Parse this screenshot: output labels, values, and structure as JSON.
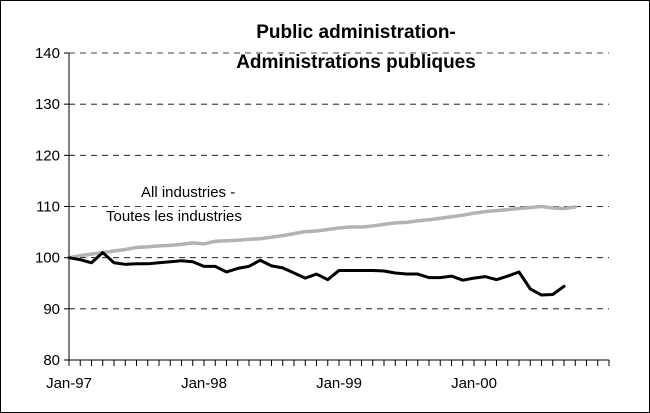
{
  "chart_data": {
    "type": "line",
    "title_lines": [
      "Public administration-",
      "Administrations publiques"
    ],
    "xlabel": "",
    "ylabel": "",
    "ylim": [
      80,
      140
    ],
    "yticks": [
      80,
      90,
      100,
      110,
      120,
      130,
      140
    ],
    "x_tick_labels": [
      "Jan-97",
      "Jan-98",
      "Jan-99",
      "Jan-00"
    ],
    "x_tick_label_months": [
      0,
      12,
      24,
      36
    ],
    "months_total": 48,
    "grid": "horizontal-dashed",
    "annotation_lines": [
      "All industries -",
      "Toutes les industries"
    ],
    "colors": {
      "all_industries": "#b3b3b3",
      "public_admin": "#000000"
    },
    "series": [
      {
        "values": [
          100.0,
          100.4,
          100.7,
          101.0,
          101.3,
          101.6,
          102.0,
          102.1,
          102.3,
          102.4,
          102.6,
          102.9,
          102.7,
          103.2,
          103.3,
          103.4,
          103.6,
          103.7,
          104.0,
          104.3,
          104.7,
          105.1,
          105.2,
          105.5,
          105.8,
          106.0,
          106.0,
          106.2,
          106.5,
          106.8,
          106.9,
          107.2,
          107.4,
          107.7,
          108.0,
          108.3,
          108.7,
          109.0,
          109.2,
          109.4,
          109.6,
          109.8,
          110.0,
          109.7,
          109.6,
          109.9
        ]
      },
      {
        "values": [
          100.0,
          99.6,
          99.0,
          101.0,
          99.0,
          98.7,
          98.8,
          98.8,
          99.0,
          99.2,
          99.4,
          99.2,
          98.3,
          98.3,
          97.2,
          97.9,
          98.3,
          99.5,
          98.4,
          98.0,
          97.0,
          96.0,
          96.8,
          95.7,
          97.5,
          97.5,
          97.5,
          97.5,
          97.4,
          97.0,
          96.8,
          96.8,
          96.1,
          96.1,
          96.4,
          95.6,
          96.0,
          96.3,
          95.7,
          96.4,
          97.2,
          93.9,
          92.7,
          92.8,
          94.4
        ]
      }
    ]
  }
}
